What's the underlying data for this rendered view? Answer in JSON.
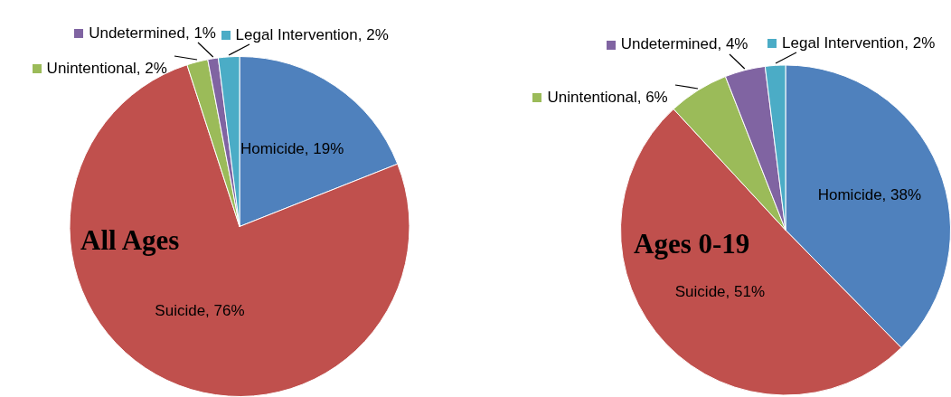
{
  "chart_data": [
    {
      "type": "pie",
      "title": "All Ages",
      "categories": [
        "Homicide",
        "Suicide",
        "Unintentional",
        "Undetermined",
        "Legal Intervention"
      ],
      "values": [
        19,
        76,
        2,
        1,
        2
      ],
      "value_labels": [
        "19%",
        "76%",
        "2%",
        "1%",
        "2%"
      ],
      "colors": [
        "#4f81bd",
        "#c0504d",
        "#9bbb59",
        "#8064a2",
        "#4bacc6"
      ],
      "legend": "top"
    },
    {
      "type": "pie",
      "title": "Ages 0-19",
      "categories": [
        "Homicide",
        "Suicide",
        "Unintentional",
        "Undetermined",
        "Legal Intervention"
      ],
      "values": [
        38,
        51,
        6,
        4,
        2
      ],
      "value_labels": [
        "38%",
        "51%",
        "6%",
        "4%",
        "2%"
      ],
      "colors": [
        "#4f81bd",
        "#c0504d",
        "#9bbb59",
        "#8064a2",
        "#4bacc6"
      ],
      "legend": "top"
    }
  ]
}
